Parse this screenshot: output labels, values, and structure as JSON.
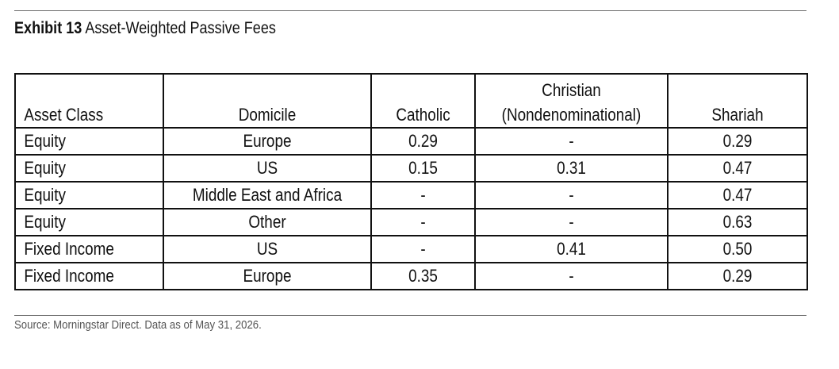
{
  "exhibit": {
    "label": "Exhibit 13",
    "title": "Asset-Weighted Passive Fees"
  },
  "table": {
    "headers": {
      "asset_class": "Asset Class",
      "domicile": "Domicile",
      "catholic": "Catholic",
      "christian_line1": "Christian",
      "christian_line2": "(Nondenominational)",
      "shariah": "Shariah"
    },
    "rows": [
      {
        "asset_class": "Equity",
        "domicile": "Europe",
        "catholic": "0.29",
        "christian": "-",
        "shariah": "0.29"
      },
      {
        "asset_class": "Equity",
        "domicile": "US",
        "catholic": "0.15",
        "christian": "0.31",
        "shariah": "0.47"
      },
      {
        "asset_class": "Equity",
        "domicile": "Middle East and Africa",
        "catholic": "-",
        "christian": "-",
        "shariah": "0.47"
      },
      {
        "asset_class": "Equity",
        "domicile": "Other",
        "catholic": "-",
        "christian": "-",
        "shariah": "0.63"
      },
      {
        "asset_class": "Fixed Income",
        "domicile": "US",
        "catholic": "-",
        "christian": "0.41",
        "shariah": "0.50"
      },
      {
        "asset_class": "Fixed Income",
        "domicile": "Europe",
        "catholic": "0.35",
        "christian": "-",
        "shariah": "0.29"
      }
    ]
  },
  "source": "Source: Morningstar Direct. Data as of May 31, 2026."
}
